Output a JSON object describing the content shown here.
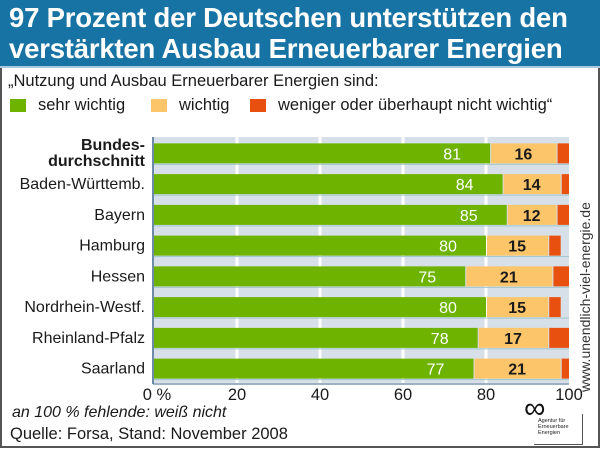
{
  "header": {
    "title_line1": "97 Prozent der Deutschen unterstützen den",
    "title_line2": "verstärkten Ausbau Erneuerbarer Energien",
    "background_color": "#1673a3"
  },
  "subtitle": "„Nutzung und Ausbau Erneuerbarer Energien sind:",
  "legend": [
    {
      "label": "sehr wichtig",
      "color": "#6db300"
    },
    {
      "label": "wichtig",
      "color": "#fcc56a"
    },
    {
      "label": "weniger oder überhaupt nicht wichtig“",
      "color": "#e8500f"
    }
  ],
  "footnote": "an 100 % fehlende: weiß nicht",
  "source": "Quelle: Forsa, Stand: November 2008",
  "url": "www.unendlich-viel-energie.de",
  "logo": {
    "glyph": "∞",
    "text_lines": [
      "Agentur für",
      "Erneuerbare",
      "Energien"
    ]
  },
  "chart_data": {
    "type": "bar",
    "orientation": "horizontal",
    "stacked": true,
    "title": "97 Prozent der Deutschen unterstützen den verstärkten Ausbau Erneuerbarer Energien",
    "subtitle": "„Nutzung und Ausbau Erneuerbarer Energien sind:",
    "categories": [
      "Bundes-\ndurchschnitt",
      "Baden-Württemb.",
      "Bayern",
      "Hamburg",
      "Hessen",
      "Nordrhein-Westf.",
      "Rheinland-Pfalz",
      "Saarland"
    ],
    "category_bold": [
      true,
      false,
      false,
      false,
      false,
      false,
      false,
      false
    ],
    "series": [
      {
        "name": "sehr wichtig",
        "color": "#6db300",
        "values": [
          81,
          84,
          85,
          80,
          75,
          80,
          78,
          77
        ],
        "labeled": true,
        "label_color": "#ffffff"
      },
      {
        "name": "wichtig",
        "color": "#fcc56a",
        "values": [
          16,
          14,
          12,
          15,
          21,
          15,
          17,
          21
        ],
        "labeled": true,
        "label_color": "#1a1a1a"
      },
      {
        "name": "weniger oder überhaupt nicht wichtig",
        "color": "#e8500f",
        "values": [
          3,
          2,
          3,
          3,
          4,
          3,
          5,
          2
        ],
        "labeled": false
      }
    ],
    "xlabel": "",
    "ylabel": "",
    "xlim": [
      0,
      100
    ],
    "xticks": [
      0,
      20,
      40,
      60,
      80,
      100
    ],
    "xtick_labels": [
      "0 %",
      "20",
      "40",
      "60",
      "80",
      "100"
    ],
    "grid": true,
    "legend_position": "top",
    "annotation": "an 100 % fehlende: weiß nicht",
    "source": "Quelle: Forsa, Stand: November 2008"
  }
}
